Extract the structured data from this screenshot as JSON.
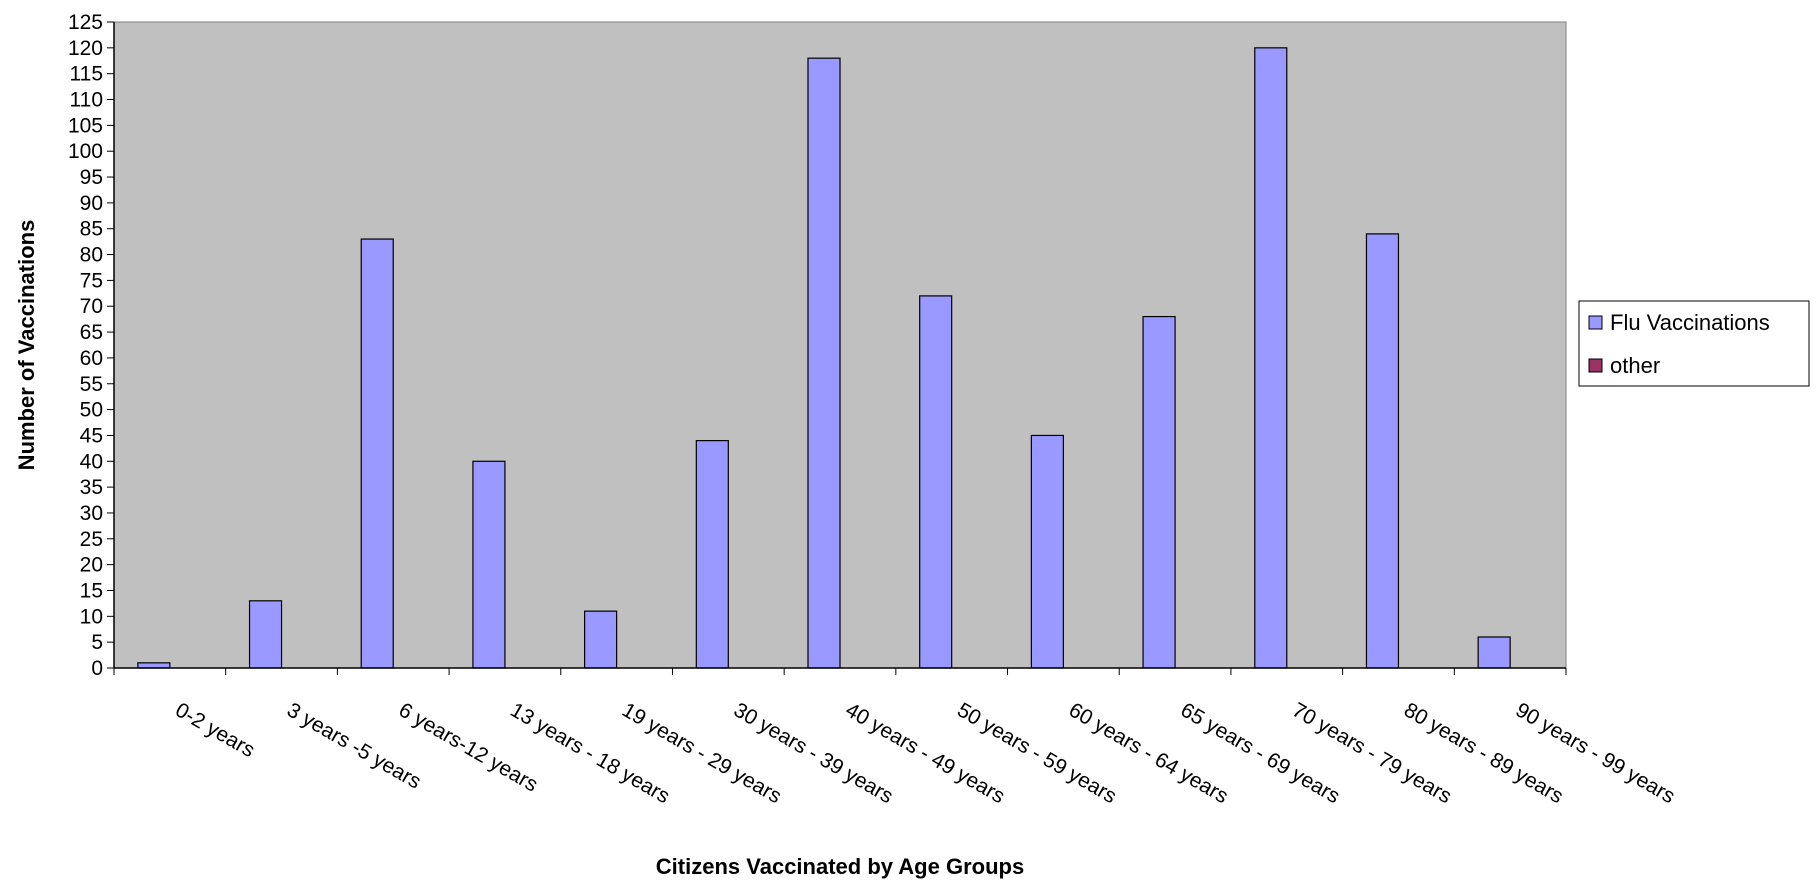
{
  "chart_data": {
    "type": "bar",
    "title": "",
    "xlabel": "Citizens Vaccinated by Age Groups",
    "ylabel": "Number of Vaccinations",
    "ylim": [
      0,
      125
    ],
    "ytick_step": 5,
    "grid": false,
    "legend_position": "right",
    "categories": [
      "0-2 years",
      "3 years -5 years",
      "6 years-12 years",
      "13 years - 18 years",
      "19 years - 29 years",
      "30 years - 39 years",
      "40 years - 49 years",
      "50 years - 59 years",
      "60 years - 64 years",
      "65 years - 69 years",
      "70 years - 79 years",
      "80 years - 89 years",
      "90 years - 99 years"
    ],
    "series": [
      {
        "name": "Flu Vaccinations",
        "color": "#9999ff",
        "values": [
          1,
          13,
          83,
          40,
          11,
          44,
          118,
          72,
          45,
          68,
          120,
          84,
          6
        ]
      },
      {
        "name": "other",
        "color": "#993366",
        "values": [
          0,
          0,
          0,
          0,
          0,
          0,
          0,
          0,
          0,
          0,
          0,
          0,
          0
        ]
      }
    ],
    "plot_background": "#c0c0c0"
  }
}
